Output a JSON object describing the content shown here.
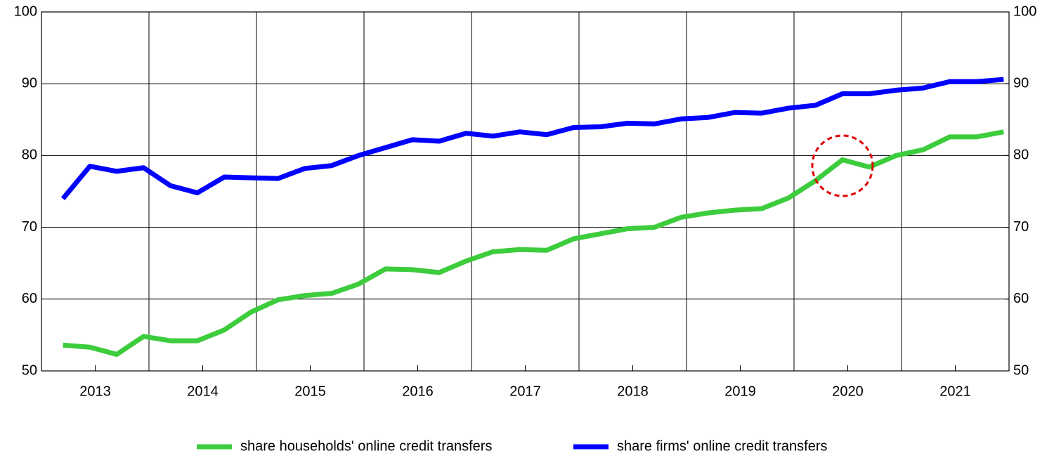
{
  "chart_data": {
    "type": "line",
    "x": [
      2013.2,
      2013.45,
      2013.7,
      2013.95,
      2014.2,
      2014.45,
      2014.7,
      2014.95,
      2015.2,
      2015.45,
      2015.7,
      2015.95,
      2016.2,
      2016.45,
      2016.7,
      2016.95,
      2017.2,
      2017.45,
      2017.7,
      2017.95,
      2018.2,
      2018.45,
      2018.7,
      2018.95,
      2019.2,
      2019.45,
      2019.7,
      2019.95,
      2020.2,
      2020.45,
      2020.7,
      2020.95,
      2021.2,
      2021.45,
      2021.7,
      2021.95
    ],
    "series": [
      {
        "name": "share households' online credit transfers",
        "color": "#3ccc3c",
        "values": [
          53.6,
          53.3,
          52.3,
          54.8,
          54.2,
          54.2,
          55.7,
          58.2,
          59.9,
          60.5,
          60.8,
          62.1,
          64.2,
          64.1,
          63.7,
          65.3,
          66.6,
          66.9,
          66.8,
          68.4,
          69.1,
          69.8,
          70.0,
          71.4,
          72.0,
          72.4,
          72.6,
          74.1,
          76.5,
          79.4,
          78.4,
          80.0,
          80.8,
          82.6,
          82.6,
          83.3
        ]
      },
      {
        "name": "share firms' online credit transfers",
        "color": "#0000ff",
        "values": [
          74.0,
          78.5,
          77.8,
          78.3,
          75.8,
          74.8,
          77.0,
          76.9,
          76.8,
          78.2,
          78.6,
          80.0,
          81.1,
          82.2,
          82.0,
          83.1,
          82.7,
          83.3,
          82.9,
          83.9,
          84.0,
          84.5,
          84.4,
          85.1,
          85.3,
          86.0,
          85.9,
          86.6,
          87.0,
          88.6,
          88.6,
          89.1,
          89.4,
          90.3,
          90.3,
          90.6
        ]
      }
    ],
    "xlim": [
      2013,
      2022
    ],
    "xticks": [
      {
        "value": 2013.5,
        "label": "2013"
      },
      {
        "value": 2014.5,
        "label": "2014"
      },
      {
        "value": 2015.5,
        "label": "2015"
      },
      {
        "value": 2016.5,
        "label": "2016"
      },
      {
        "value": 2017.5,
        "label": "2017"
      },
      {
        "value": 2018.5,
        "label": "2018"
      },
      {
        "value": 2019.5,
        "label": "2019"
      },
      {
        "value": 2020.5,
        "label": "2020"
      },
      {
        "value": 2021.5,
        "label": "2021"
      }
    ],
    "ylim": [
      50,
      100
    ],
    "yticks": [
      50,
      60,
      70,
      80,
      90,
      100
    ],
    "y2lim": [
      50,
      100
    ],
    "y2ticks": [
      50,
      60,
      70,
      80,
      90,
      100
    ],
    "grid": true,
    "legend": "bottom"
  }
}
